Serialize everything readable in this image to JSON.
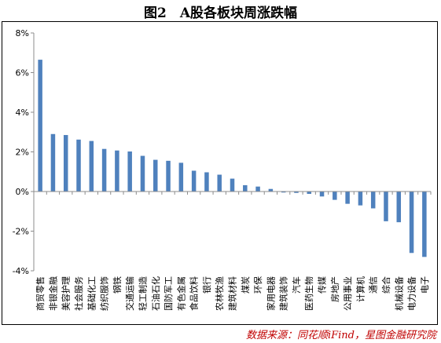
{
  "title": "图2　A股各板块周涨跌幅",
  "source": "数据来源：同花顺iFind，星图金融研究院",
  "colors": {
    "bar": "#4f81bd",
    "axis": "#8c8c8c",
    "text": "#000000",
    "source": "#c00000"
  },
  "chart_data": {
    "type": "bar",
    "title": "图2　A股各板块周涨跌幅",
    "ylim": [
      -4,
      8
    ],
    "yticks": [
      -4,
      -2,
      0,
      2,
      4,
      6,
      8
    ],
    "ytick_labels": [
      "-4%",
      "-2%",
      "0%",
      "2%",
      "4%",
      "6%",
      "8%"
    ],
    "grid": false,
    "categories": [
      "商贸零售",
      "非银金融",
      "美容护理",
      "社会服务",
      "基础化工",
      "纺织服饰",
      "钢铁",
      "交通运输",
      "轻工制造",
      "石油石化",
      "国防军工",
      "有色金属",
      "食品饮料",
      "银行",
      "农林牧渔",
      "建筑材料",
      "煤炭",
      "环保",
      "家用电器",
      "建筑装饰",
      "汽车",
      "医药生物",
      "传媒",
      "房地产",
      "公用事业",
      "计算机",
      "通信",
      "综合",
      "机械设备",
      "电力设备",
      "电子"
    ],
    "values": [
      6.65,
      2.9,
      2.85,
      2.62,
      2.55,
      2.15,
      2.07,
      2.02,
      1.8,
      1.6,
      1.55,
      1.45,
      1.05,
      0.97,
      0.85,
      0.65,
      0.32,
      0.25,
      0.13,
      -0.05,
      -0.07,
      -0.12,
      -0.25,
      -0.42,
      -0.62,
      -0.7,
      -0.85,
      -1.5,
      -1.55,
      -3.1,
      -3.3
    ]
  }
}
